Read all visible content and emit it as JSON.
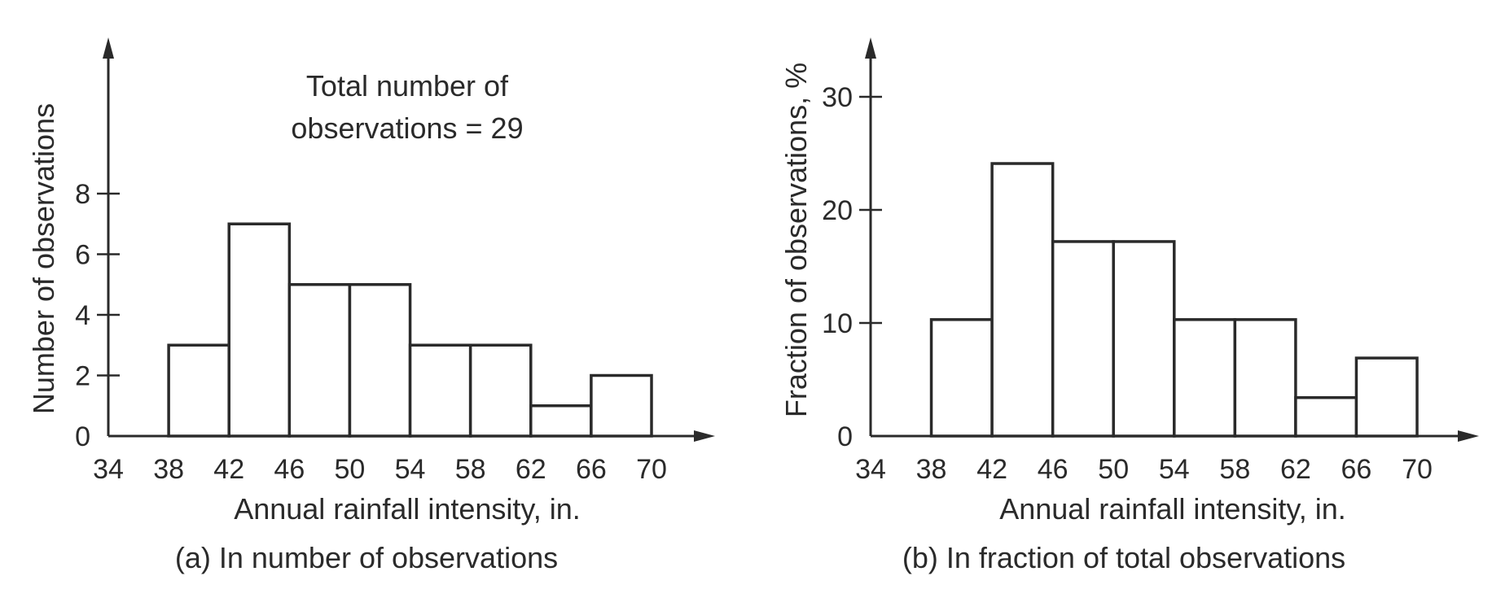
{
  "chart_data": [
    {
      "type": "bar",
      "panel": "a",
      "xlabel": "Annual rainfall intensity, in.",
      "ylabel": "Number of observations",
      "caption": "(a) In number of observations",
      "annotation": [
        "Total number of",
        "observations = 29"
      ],
      "x_ticks": [
        "34",
        "38",
        "42",
        "46",
        "50",
        "54",
        "58",
        "62",
        "66",
        "70"
      ],
      "y_ticks": [
        "0",
        "2",
        "4",
        "6",
        "8"
      ],
      "bin_edges": [
        38,
        42,
        46,
        50,
        54,
        58,
        62,
        66,
        70
      ],
      "values": [
        3,
        7,
        5,
        5,
        3,
        3,
        1,
        2
      ],
      "xlim": [
        34,
        70
      ],
      "ylim": [
        0,
        8
      ],
      "grid": false
    },
    {
      "type": "bar",
      "panel": "b",
      "xlabel": "Annual rainfall intensity, in.",
      "ylabel": "Fraction of observations, %",
      "caption": "(b) In fraction of total observations",
      "x_ticks": [
        "34",
        "38",
        "42",
        "46",
        "50",
        "54",
        "58",
        "62",
        "66",
        "70"
      ],
      "y_ticks": [
        "0",
        "10",
        "20",
        "30"
      ],
      "bin_edges": [
        38,
        42,
        46,
        50,
        54,
        58,
        62,
        66,
        70
      ],
      "values": [
        10.3,
        24.1,
        17.2,
        17.2,
        10.3,
        10.3,
        3.4,
        6.9
      ],
      "xlim": [
        34,
        70
      ],
      "ylim": [
        0,
        30
      ],
      "grid": false
    }
  ]
}
